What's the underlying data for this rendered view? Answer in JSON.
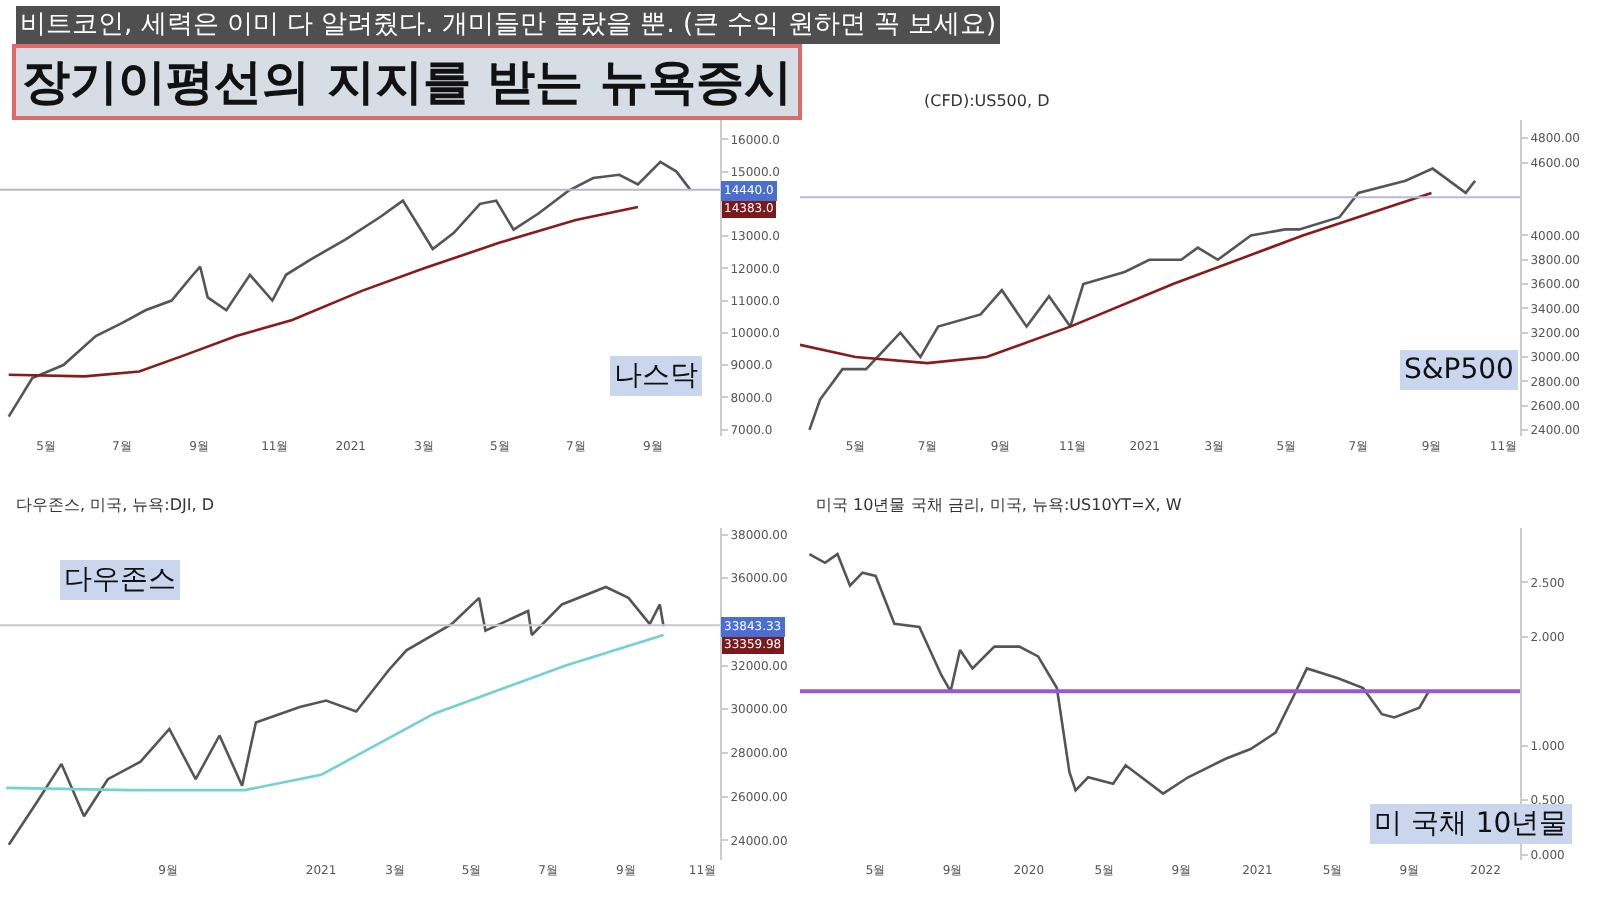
{
  "chart_data": [
    {
      "type": "line",
      "annotations": [
        "비트코인, 세력은 이미 다 알려줬다. 개미들만 몰랐을 뿐. (큰 수익 원하면 꼭 보세요)",
        "장기이평선의 지지를 받는 뉴욕증시",
        "나스닥",
        "14383.0"
      ],
      "series": [
        {
          "color": "#555555",
          "x": [
            "2020-04-01",
            "2020-04-20",
            "2020-05-15",
            "2020-06-10",
            "2020-07-01",
            "2020-07-20",
            "2020-08-10",
            "2020-08-25",
            "2020-09-02",
            "2020-09-08",
            "2020-09-23",
            "2020-10-12",
            "2020-10-30",
            "2020-11-10",
            "2020-12-01",
            "2020-12-28",
            "2021-01-25",
            "2021-02-12",
            "2021-03-08",
            "2021-03-25",
            "2021-04-15",
            "2021-04-28",
            "2021-05-12",
            "2021-06-01",
            "2021-06-25",
            "2021-07-15",
            "2021-08-05",
            "2021-08-20",
            "2021-09-07",
            "2021-09-20",
            "2021-10-01"
          ],
          "values": [
            7400,
            8600,
            9000,
            9900,
            10300,
            10700,
            11000,
            11700,
            12050,
            11100,
            10700,
            11800,
            11000,
            11800,
            12300,
            12900,
            13600,
            14100,
            12600,
            13100,
            14000,
            14100,
            13200,
            13700,
            14400,
            14800,
            14900,
            14600,
            15300,
            15000,
            14440
          ]
        },
        {
          "color": "#8b1a1a",
          "x": [
            "2020-04-01",
            "2020-06-01",
            "2020-07-15",
            "2020-08-20",
            "2020-10-01",
            "2020-11-15",
            "2021-01-10",
            "2021-03-01",
            "2021-05-01",
            "2021-07-01",
            "2021-08-20"
          ],
          "values": [
            8700,
            8650,
            8800,
            9300,
            9900,
            10400,
            11300,
            12000,
            12800,
            13500,
            13900
          ]
        }
      ],
      "xlim": [
        "2020-03-25",
        "2021-10-25"
      ],
      "xticks": [
        {
          "value": "2020-05-01",
          "label": "5월"
        },
        {
          "value": "2020-07-01",
          "label": "7월"
        },
        {
          "value": "2020-09-01",
          "label": "9월"
        },
        {
          "value": "2020-11-01",
          "label": "11월"
        },
        {
          "value": "2021-01-01",
          "label": "2021"
        },
        {
          "value": "2021-03-01",
          "label": "3월"
        },
        {
          "value": "2021-05-01",
          "label": "5월"
        },
        {
          "value": "2021-07-01",
          "label": "7월"
        },
        {
          "value": "2021-09-01",
          "label": "9월"
        }
      ],
      "ylim": [
        6800,
        16600
      ],
      "yticks": [
        {
          "value": 7000,
          "label": "7000.0"
        },
        {
          "value": 8000,
          "label": "8000.0"
        },
        {
          "value": 9000,
          "label": "9000.0"
        },
        {
          "value": 10000,
          "label": "10000.0"
        },
        {
          "value": 11000,
          "label": "11000.0"
        },
        {
          "value": 12000,
          "label": "12000.0"
        },
        {
          "value": 13000,
          "label": "13000.0"
        },
        {
          "value": 15000,
          "label": "15000.0"
        },
        {
          "value": 16000,
          "label": "16000.0"
        }
      ],
      "ref_lines": [
        {
          "axis": "y",
          "value": 14440,
          "label": "14440.0",
          "color": "#b8b8c8"
        }
      ]
    },
    {
      "type": "line",
      "title": "(CFD):US500, D",
      "annotations": [
        "S&P500"
      ],
      "series": [
        {
          "color": "#555555",
          "x": [
            "2020-03-23",
            "2020-04-01",
            "2020-04-20",
            "2020-05-10",
            "2020-06-08",
            "2020-06-25",
            "2020-07-10",
            "2020-08-15",
            "2020-09-02",
            "2020-09-23",
            "2020-10-12",
            "2020-10-30",
            "2020-11-10",
            "2020-12-15",
            "2021-01-05",
            "2021-02-01",
            "2021-02-15",
            "2021-03-04",
            "2021-04-01",
            "2021-04-30",
            "2021-05-12",
            "2021-06-15",
            "2021-07-01",
            "2021-08-10",
            "2021-09-02",
            "2021-09-30",
            "2021-10-08"
          ],
          "values": [
            2400,
            2650,
            2900,
            2900,
            3200,
            3000,
            3250,
            3350,
            3550,
            3250,
            3500,
            3250,
            3600,
            3700,
            3800,
            3800,
            3900,
            3800,
            4000,
            4050,
            4050,
            4150,
            4350,
            4450,
            4550,
            4350,
            4450
          ]
        },
        {
          "color": "#8b1a1a",
          "x": [
            "2020-03-15",
            "2020-05-01",
            "2020-07-01",
            "2020-08-20",
            "2020-10-30",
            "2021-01-25",
            "2021-05-15",
            "2021-08-01",
            "2021-09-01"
          ],
          "values": [
            3100,
            3000,
            2950,
            3000,
            3250,
            3600,
            4000,
            4250,
            4350
          ]
        }
      ],
      "xlim": [
        "2020-03-15",
        "2021-11-15"
      ],
      "xticks": [
        {
          "value": "2020-05-01",
          "label": "5월"
        },
        {
          "value": "2020-07-01",
          "label": "7월"
        },
        {
          "value": "2020-09-01",
          "label": "9월"
        },
        {
          "value": "2020-11-01",
          "label": "11월"
        },
        {
          "value": "2021-01-01",
          "label": "2021"
        },
        {
          "value": "2021-03-01",
          "label": "3월"
        },
        {
          "value": "2021-05-01",
          "label": "5월"
        },
        {
          "value": "2021-07-01",
          "label": "7월"
        },
        {
          "value": "2021-09-01",
          "label": "9월"
        },
        {
          "value": "2021-11-01",
          "label": "11월"
        }
      ],
      "ylim": [
        2350,
        4950
      ],
      "yticks": [
        {
          "value": 2400,
          "label": "2400.00"
        },
        {
          "value": 2600,
          "label": "2600.00"
        },
        {
          "value": 2800,
          "label": "2800.00"
        },
        {
          "value": 3000,
          "label": "3000.00"
        },
        {
          "value": 3200,
          "label": "3200.00"
        },
        {
          "value": 3400,
          "label": "3400.00"
        },
        {
          "value": 3600,
          "label": "3600.00"
        },
        {
          "value": 3800,
          "label": "3800.00"
        },
        {
          "value": 4000,
          "label": "4000.00"
        },
        {
          "value": 4600,
          "label": "4600.00"
        },
        {
          "value": 4800,
          "label": "4800.00"
        }
      ],
      "ref_lines": [
        {
          "axis": "y",
          "value": 4315,
          "color": "#b8b8d8"
        }
      ]
    },
    {
      "type": "line",
      "title": "다우존스, 미국, 뉴욕:DJI, D",
      "annotations": [
        "다우존스",
        "33359.98"
      ],
      "series": [
        {
          "color": "#555555",
          "x": [
            "2020-04-27",
            "2020-05-20",
            "2020-06-08",
            "2020-06-26",
            "2020-07-15",
            "2020-08-10",
            "2020-09-02",
            "2020-09-23",
            "2020-10-12",
            "2020-10-30",
            "2020-11-10",
            "2020-12-15",
            "2021-01-05",
            "2021-01-29",
            "2021-02-24",
            "2021-03-10",
            "2021-04-15",
            "2021-05-07",
            "2021-05-12",
            "2021-06-15",
            "2021-06-18",
            "2021-07-12",
            "2021-08-16",
            "2021-09-03",
            "2021-09-20",
            "2021-09-28",
            "2021-10-01"
          ],
          "values": [
            23800,
            25800,
            27500,
            25100,
            26800,
            27600,
            29100,
            26800,
            28800,
            26500,
            29400,
            30100,
            30400,
            29900,
            31800,
            32700,
            33900,
            35100,
            33600,
            34500,
            33400,
            34800,
            35600,
            35100,
            33900,
            34800,
            33800
          ]
        },
        {
          "color": "#6fd3d0",
          "x": [
            "2020-04-25",
            "2020-08-01",
            "2020-11-01",
            "2021-01-01",
            "2021-04-01",
            "2021-07-15",
            "2021-10-01"
          ],
          "values": [
            26400,
            26300,
            26300,
            27000,
            29800,
            32000,
            33400
          ]
        }
      ],
      "xlim": [
        "2020-04-20",
        "2021-11-15"
      ],
      "xticks": [
        {
          "value": "2020-09-01",
          "label": "9월"
        },
        {
          "value": "2021-01-01",
          "label": "2021"
        },
        {
          "value": "2021-03-01",
          "label": "3월"
        },
        {
          "value": "2021-05-01",
          "label": "5월"
        },
        {
          "value": "2021-07-01",
          "label": "7월"
        },
        {
          "value": "2021-09-01",
          "label": "9월"
        },
        {
          "value": "2021-11-01",
          "label": "11월"
        }
      ],
      "ylim": [
        23100,
        38300
      ],
      "yticks": [
        {
          "value": 24000,
          "label": "24000.00"
        },
        {
          "value": 26000,
          "label": "26000.00"
        },
        {
          "value": 28000,
          "label": "28000.00"
        },
        {
          "value": 30000,
          "label": "30000.00"
        },
        {
          "value": 32000,
          "label": "32000.00"
        },
        {
          "value": 36000,
          "label": "36000.00"
        },
        {
          "value": 38000,
          "label": "38000.00"
        }
      ],
      "ref_lines": [
        {
          "axis": "y",
          "value": 33843.33,
          "label": "33843.33",
          "color": "#c8c8c8"
        }
      ]
    },
    {
      "type": "line",
      "title": "미국 10년물 국채 금리, 미국, 뉴욕:US10YT=X, W",
      "annotations": [
        "미 국채 10년물"
      ],
      "series": [
        {
          "color": "#555555",
          "x": [
            "2019-01-15",
            "2019-02-09",
            "2019-03-01",
            "2019-03-21",
            "2019-04-10",
            "2019-05-01",
            "2019-05-31",
            "2019-07-10",
            "2019-08-14",
            "2019-08-29",
            "2019-09-13",
            "2019-10-03",
            "2019-11-07",
            "2019-12-17",
            "2020-01-16",
            "2020-02-15",
            "2020-03-06",
            "2020-03-16",
            "2020-04-05",
            "2020-05-15",
            "2020-06-04",
            "2020-08-03",
            "2020-09-12",
            "2020-11-11",
            "2020-12-21",
            "2021-01-30",
            "2021-03-01",
            "2021-03-21",
            "2021-05-10",
            "2021-06-19",
            "2021-07-19",
            "2021-08-08",
            "2021-09-17",
            "2021-10-02"
          ],
          "values": [
            2.76,
            2.68,
            2.76,
            2.47,
            2.59,
            2.56,
            2.12,
            2.09,
            1.65,
            1.5,
            1.88,
            1.71,
            1.91,
            1.91,
            1.82,
            1.53,
            0.76,
            0.59,
            0.71,
            0.65,
            0.82,
            0.56,
            0.71,
            0.88,
            0.97,
            1.12,
            1.47,
            1.71,
            1.62,
            1.53,
            1.29,
            1.26,
            1.35,
            1.5
          ]
        }
      ],
      "xlim": [
        "2018-12-31",
        "2022-02-25"
      ],
      "xticks": [
        {
          "value": "2019-05-01",
          "label": "5월"
        },
        {
          "value": "2019-09-01",
          "label": "9월"
        },
        {
          "value": "2020-01-01",
          "label": "2020"
        },
        {
          "value": "2020-05-01",
          "label": "5월"
        },
        {
          "value": "2020-09-01",
          "label": "9월"
        },
        {
          "value": "2021-01-01",
          "label": "2021"
        },
        {
          "value": "2021-05-01",
          "label": "5월"
        },
        {
          "value": "2021-09-01",
          "label": "9월"
        },
        {
          "value": "2022-01-01",
          "label": "2022"
        }
      ],
      "ylim": [
        -0.05,
        3.0
      ],
      "yticks": [
        {
          "value": 0,
          "label": "0.000"
        },
        {
          "value": 0.5,
          "label": "0.500"
        },
        {
          "value": 1,
          "label": "1.000"
        },
        {
          "value": 2,
          "label": "2.000"
        },
        {
          "value": 2.5,
          "label": "2.500"
        }
      ],
      "ref_lines": [
        {
          "axis": "y",
          "value": 1.5,
          "color": "#9b59d0"
        }
      ]
    }
  ]
}
